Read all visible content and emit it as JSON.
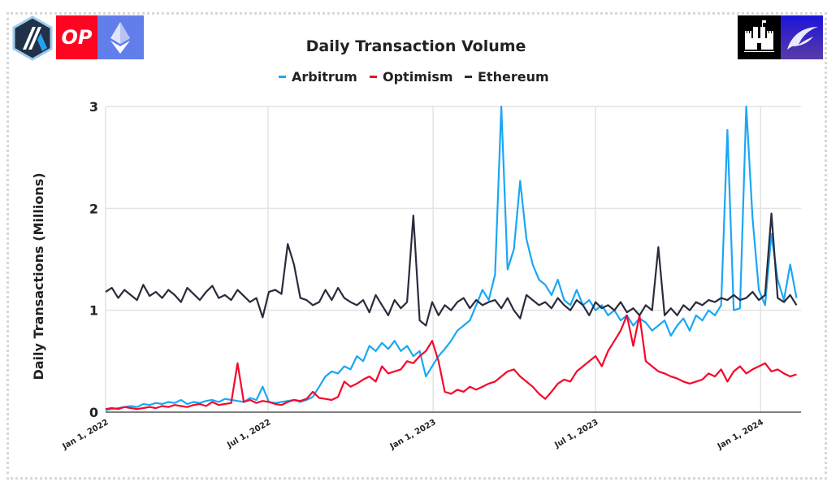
{
  "logos": {
    "left": [
      "Arbitrum logo",
      "OP",
      "Ethereum logo"
    ],
    "op_text": "OP",
    "colors": {
      "arbitrum_dark": "#213147",
      "arbitrum_blue": "#28a0f0",
      "op_red": "#ff0420",
      "eth_blue": "#627eea",
      "castle_bg": "#000000",
      "eye_bg": "#2a1fd0"
    }
  },
  "chart_data": {
    "type": "line",
    "title": "Daily Transaction Volume",
    "xlabel": "",
    "ylabel": "Daily Transactions (Millions)",
    "ylim": [
      0,
      3
    ],
    "yticks": [
      "0",
      "1",
      "2",
      "3"
    ],
    "xticks": [
      {
        "label": "Jan 1, 2022",
        "day": 0
      },
      {
        "label": "Jul 1, 2022",
        "day": 181
      },
      {
        "label": "Jan 1, 2023",
        "day": 365
      },
      {
        "label": "Jul 1, 2023",
        "day": 546
      },
      {
        "label": "Jan 1, 2024",
        "day": 730
      }
    ],
    "x_start": "2022-01-01",
    "x_step_days": 7,
    "x_range_days": [
      0,
      775
    ],
    "grid": true,
    "legend_position": "top-center",
    "series": [
      {
        "name": "Arbitrum",
        "color": "#1aa7f5",
        "values": [
          0.02,
          0.03,
          0.04,
          0.05,
          0.06,
          0.05,
          0.08,
          0.07,
          0.09,
          0.08,
          0.1,
          0.09,
          0.12,
          0.08,
          0.1,
          0.09,
          0.11,
          0.12,
          0.1,
          0.13,
          0.12,
          0.11,
          0.1,
          0.14,
          0.12,
          0.25,
          0.1,
          0.09,
          0.1,
          0.11,
          0.12,
          0.1,
          0.12,
          0.15,
          0.25,
          0.35,
          0.4,
          0.38,
          0.45,
          0.42,
          0.55,
          0.5,
          0.65,
          0.6,
          0.68,
          0.62,
          0.7,
          0.6,
          0.65,
          0.55,
          0.6,
          0.35,
          0.45,
          0.55,
          0.62,
          0.7,
          0.8,
          0.85,
          0.9,
          1.05,
          1.2,
          1.1,
          1.35,
          3.0,
          1.4,
          1.6,
          2.27,
          1.7,
          1.45,
          1.3,
          1.25,
          1.15,
          1.3,
          1.1,
          1.05,
          1.2,
          1.05,
          1.1,
          1.0,
          1.05,
          0.95,
          1.0,
          0.9,
          0.95,
          0.85,
          0.92,
          0.88,
          0.8,
          0.85,
          0.9,
          0.75,
          0.85,
          0.92,
          0.8,
          0.95,
          0.9,
          1.0,
          0.95,
          1.05,
          2.77,
          1.0,
          1.02,
          3.0,
          1.9,
          1.2,
          1.05,
          1.75,
          1.3,
          1.1,
          1.45,
          1.12
        ]
      },
      {
        "name": "Optimism",
        "color": "#f5082a",
        "values": [
          0.03,
          0.04,
          0.03,
          0.05,
          0.04,
          0.03,
          0.04,
          0.05,
          0.04,
          0.06,
          0.05,
          0.07,
          0.06,
          0.05,
          0.07,
          0.08,
          0.06,
          0.1,
          0.07,
          0.08,
          0.09,
          0.48,
          0.1,
          0.12,
          0.09,
          0.11,
          0.1,
          0.08,
          0.07,
          0.1,
          0.12,
          0.11,
          0.13,
          0.2,
          0.14,
          0.13,
          0.12,
          0.15,
          0.3,
          0.25,
          0.28,
          0.32,
          0.35,
          0.3,
          0.45,
          0.38,
          0.4,
          0.42,
          0.5,
          0.48,
          0.55,
          0.6,
          0.7,
          0.5,
          0.2,
          0.18,
          0.22,
          0.2,
          0.25,
          0.22,
          0.25,
          0.28,
          0.3,
          0.35,
          0.4,
          0.42,
          0.35,
          0.3,
          0.25,
          0.18,
          0.13,
          0.2,
          0.28,
          0.32,
          0.3,
          0.4,
          0.45,
          0.5,
          0.55,
          0.45,
          0.6,
          0.7,
          0.8,
          0.95,
          0.65,
          0.95,
          0.5,
          0.45,
          0.4,
          0.38,
          0.35,
          0.33,
          0.3,
          0.28,
          0.3,
          0.32,
          0.38,
          0.35,
          0.42,
          0.3,
          0.4,
          0.45,
          0.38,
          0.42,
          0.45,
          0.48,
          0.4,
          0.42,
          0.38,
          0.35,
          0.37
        ]
      },
      {
        "name": "Ethereum",
        "color": "#2b2b3d",
        "values": [
          1.18,
          1.22,
          1.12,
          1.2,
          1.15,
          1.1,
          1.25,
          1.14,
          1.18,
          1.12,
          1.2,
          1.15,
          1.08,
          1.22,
          1.16,
          1.1,
          1.18,
          1.24,
          1.12,
          1.15,
          1.1,
          1.2,
          1.14,
          1.08,
          1.12,
          0.93,
          1.18,
          1.2,
          1.16,
          1.65,
          1.45,
          1.12,
          1.1,
          1.05,
          1.08,
          1.2,
          1.1,
          1.22,
          1.12,
          1.08,
          1.05,
          1.1,
          0.98,
          1.15,
          1.05,
          0.95,
          1.1,
          1.02,
          1.08,
          1.93,
          0.9,
          0.85,
          1.08,
          0.95,
          1.05,
          1.0,
          1.08,
          1.12,
          1.02,
          1.1,
          1.05,
          1.08,
          1.1,
          1.02,
          1.12,
          1.0,
          0.92,
          1.15,
          1.1,
          1.05,
          1.08,
          1.02,
          1.12,
          1.05,
          1.0,
          1.1,
          1.05,
          0.95,
          1.08,
          1.02,
          1.05,
          1.0,
          1.08,
          0.98,
          1.02,
          0.95,
          1.05,
          1.0,
          1.62,
          0.95,
          1.02,
          0.95,
          1.05,
          1.0,
          1.08,
          1.05,
          1.1,
          1.08,
          1.12,
          1.1,
          1.15,
          1.1,
          1.12,
          1.18,
          1.1,
          1.15,
          1.95,
          1.12,
          1.08,
          1.15,
          1.05
        ]
      }
    ]
  }
}
